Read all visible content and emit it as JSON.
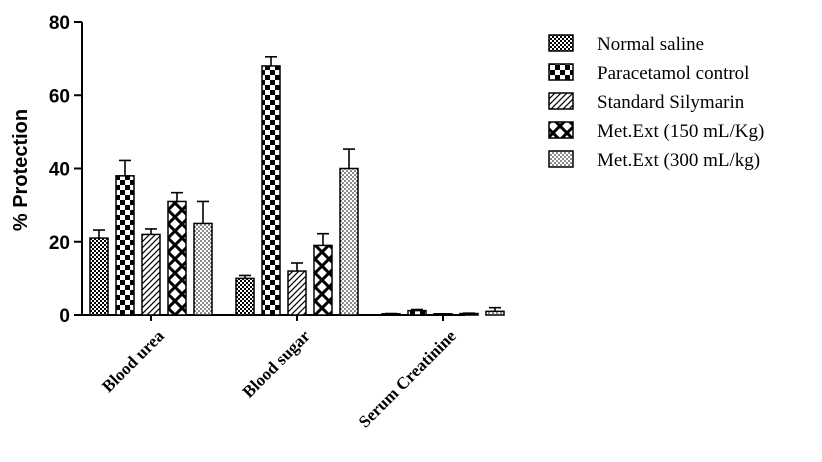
{
  "chart_data": {
    "type": "bar",
    "ylabel": "% Protection",
    "xlabel": "",
    "ylim": [
      0,
      80
    ],
    "yticks": [
      0,
      20,
      40,
      60,
      80
    ],
    "categories": [
      "Blood urea",
      "Blood sugar",
      "Serum Creatinine"
    ],
    "series": [
      {
        "name": "Normal saline",
        "values": [
          21,
          10,
          0.3
        ],
        "errors": [
          2.2,
          0.8,
          0.1
        ],
        "pattern": "fine-checker"
      },
      {
        "name": "Paracetamol control",
        "values": [
          38,
          68,
          1.2
        ],
        "errors": [
          4.2,
          2.5,
          0.3
        ],
        "pattern": "checker"
      },
      {
        "name": "Standard Silymarin",
        "values": [
          22,
          12,
          0.2
        ],
        "errors": [
          1.5,
          2.2,
          0.1
        ],
        "pattern": "diagonal"
      },
      {
        "name": "Met.Ext (150 mL/Kg)",
        "values": [
          31,
          19,
          0.4
        ],
        "errors": [
          2.4,
          3.2,
          0.1
        ],
        "pattern": "cross-hatch"
      },
      {
        "name": "Met.Ext (300 mL/kg)",
        "values": [
          25,
          40,
          1.0
        ],
        "errors": [
          6.0,
          5.3,
          1.0
        ],
        "pattern": "dots"
      }
    ],
    "legend_position": "right",
    "grid": false
  }
}
